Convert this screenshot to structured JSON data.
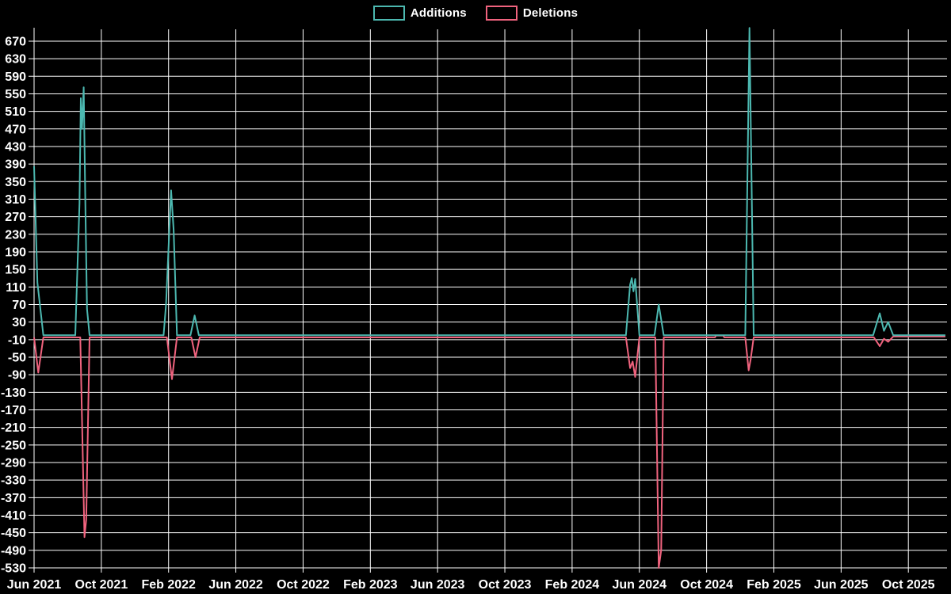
{
  "legend": {
    "items": [
      {
        "label": "Additions",
        "color": "#4cb8b0"
      },
      {
        "label": "Deletions",
        "color": "#f0637e"
      }
    ]
  },
  "chart_data": {
    "type": "line",
    "title": "",
    "xlabel": "",
    "ylabel": "",
    "background_color": "#000000",
    "grid_color": "#ffffff",
    "text_color": "#ffffff",
    "grid": true,
    "legend_position": "top-center",
    "x_axis": {
      "unit": "months since Jun 2021",
      "tick_months": [
        0,
        4,
        8,
        12,
        16,
        20,
        24,
        28,
        32,
        36,
        40,
        44,
        48,
        52
      ],
      "tick_labels": [
        "Jun 2021",
        "Oct 2021",
        "Feb 2022",
        "Jun 2022",
        "Oct 2022",
        "Feb 2023",
        "Jun 2023",
        "Oct 2023",
        "Feb 2024",
        "Jun 2024",
        "Oct 2024",
        "Feb 2025",
        "Jun 2025",
        "Oct 2025"
      ],
      "xlim": [
        0,
        54.3
      ]
    },
    "y_axis": {
      "tick_values": [
        670,
        630,
        590,
        550,
        510,
        470,
        430,
        390,
        350,
        310,
        270,
        230,
        190,
        150,
        110,
        70,
        30,
        -10,
        -50,
        -90,
        -130,
        -170,
        -210,
        -250,
        -290,
        -330,
        -370,
        -410,
        -450,
        -490,
        -530
      ],
      "ylim": [
        -530,
        697
      ]
    },
    "series": [
      {
        "name": "Additions",
        "color": "#4cb8b0",
        "points": [
          [
            0,
            385
          ],
          [
            0.2,
            120
          ],
          [
            0.55,
            0
          ],
          [
            2.45,
            0
          ],
          [
            2.7,
            300
          ],
          [
            2.78,
            540
          ],
          [
            2.85,
            470
          ],
          [
            2.95,
            565
          ],
          [
            3.05,
            300
          ],
          [
            3.15,
            60
          ],
          [
            3.3,
            0
          ],
          [
            7.7,
            0
          ],
          [
            7.85,
            70
          ],
          [
            8.15,
            330
          ],
          [
            8.3,
            240
          ],
          [
            8.5,
            0
          ],
          [
            9.3,
            0
          ],
          [
            9.55,
            45
          ],
          [
            9.8,
            0
          ],
          [
            35.2,
            0
          ],
          [
            35.45,
            115
          ],
          [
            35.55,
            130
          ],
          [
            35.65,
            100
          ],
          [
            35.75,
            128
          ],
          [
            36.0,
            0
          ],
          [
            36.9,
            0
          ],
          [
            37.15,
            70
          ],
          [
            37.45,
            0
          ],
          [
            42.3,
            0
          ],
          [
            42.55,
            700
          ],
          [
            42.8,
            0
          ],
          [
            49.9,
            0
          ],
          [
            50.3,
            50
          ],
          [
            50.55,
            10
          ],
          [
            50.8,
            30
          ],
          [
            51.1,
            0
          ],
          [
            54.2,
            0
          ]
        ]
      },
      {
        "name": "Deletions",
        "color": "#f0637e",
        "points": [
          [
            0,
            -5
          ],
          [
            0.25,
            -85
          ],
          [
            0.55,
            -5
          ],
          [
            2.75,
            -5
          ],
          [
            3.0,
            -460
          ],
          [
            3.1,
            -420
          ],
          [
            3.3,
            -5
          ],
          [
            7.9,
            -5
          ],
          [
            8.2,
            -100
          ],
          [
            8.5,
            -5
          ],
          [
            9.35,
            -5
          ],
          [
            9.6,
            -50
          ],
          [
            9.85,
            -5
          ],
          [
            35.2,
            -5
          ],
          [
            35.45,
            -75
          ],
          [
            35.6,
            -60
          ],
          [
            35.75,
            -95
          ],
          [
            36.0,
            -5
          ],
          [
            36.95,
            -5
          ],
          [
            37.15,
            -530
          ],
          [
            37.3,
            -490
          ],
          [
            37.45,
            -5
          ],
          [
            40.5,
            -5
          ],
          [
            40.55,
            -1
          ],
          [
            41.0,
            -1
          ],
          [
            41.05,
            -5
          ],
          [
            42.3,
            -5
          ],
          [
            42.5,
            -80
          ],
          [
            42.62,
            -55
          ],
          [
            42.8,
            -5
          ],
          [
            49.95,
            -5
          ],
          [
            50.3,
            -25
          ],
          [
            50.55,
            -8
          ],
          [
            50.8,
            -15
          ],
          [
            51.1,
            -3
          ],
          [
            54.2,
            -3
          ]
        ]
      }
    ]
  }
}
